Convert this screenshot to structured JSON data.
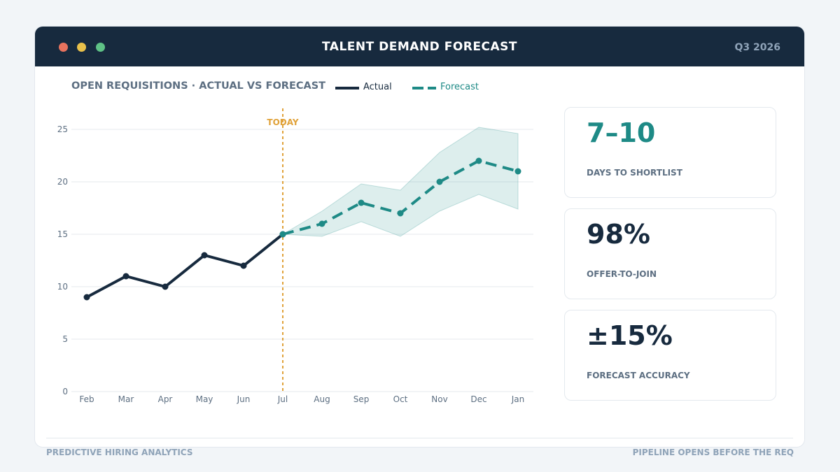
{
  "window": {
    "title": "TALENT DEMAND FORECAST",
    "quarter": "Q3 2026"
  },
  "chart_data": {
    "type": "line",
    "title": "OPEN REQUISITIONS · ACTUAL VS FORECAST",
    "categories": [
      "Feb",
      "Mar",
      "Apr",
      "May",
      "Jun",
      "Jul",
      "Aug",
      "Sep",
      "Oct",
      "Nov",
      "Dec",
      "Jan"
    ],
    "series": [
      {
        "name": "Actual",
        "style": "solid",
        "color": "#172a3e",
        "values": [
          9,
          11,
          10,
          13,
          12,
          15,
          null,
          null,
          null,
          null,
          null,
          null
        ]
      },
      {
        "name": "Forecast",
        "style": "dashed",
        "color": "#1e8a86",
        "values": [
          null,
          null,
          null,
          null,
          null,
          15,
          16,
          18,
          17,
          20,
          22,
          21
        ]
      }
    ],
    "forecast_band": {
      "upper": [
        null,
        null,
        null,
        null,
        null,
        15,
        17.2,
        19.8,
        19.2,
        22.8,
        25.2,
        24.6
      ],
      "lower": [
        null,
        null,
        null,
        null,
        null,
        15,
        14.8,
        16.2,
        14.8,
        17.2,
        18.8,
        17.4
      ],
      "color": "#1e8a86"
    },
    "today_marker": {
      "category": "Jul",
      "label": "TODAY",
      "color": "#e0a23a"
    },
    "yticks": [
      0,
      5,
      10,
      15,
      20,
      25
    ],
    "ylim": [
      0,
      25
    ],
    "grid": true,
    "legend": "top"
  },
  "kpis": [
    {
      "value": "7–10",
      "label": "DAYS TO SHORTLIST",
      "accent": "#1e8a86"
    },
    {
      "value": "98%",
      "label": "OFFER-TO-JOIN"
    },
    {
      "value": "±15%",
      "label": "FORECAST ACCURACY"
    }
  ],
  "footer": {
    "left": "PREDICTIVE HIRING ANALYTICS",
    "right": "PIPELINE OPENS BEFORE THE REQ"
  }
}
